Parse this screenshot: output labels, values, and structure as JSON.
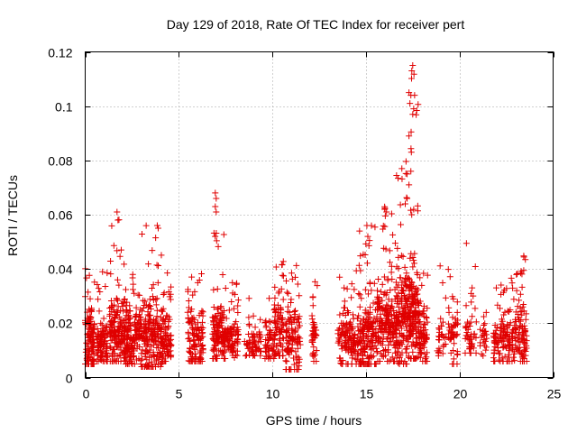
{
  "chart_data": {
    "type": "scatter",
    "title": "Day 129 of 2018, Rate Of TEC Index for receiver pert",
    "xlabel": "GPS time / hours",
    "ylabel": "ROTI / TECUs",
    "xlim": [
      0,
      25
    ],
    "ylim": [
      0,
      0.12
    ],
    "xticks": [
      0,
      5,
      10,
      15,
      20,
      25
    ],
    "xtick_labels": [
      "0",
      "5",
      "10",
      "15",
      "20",
      "25"
    ],
    "yticks": [
      0,
      0.02,
      0.04,
      0.06,
      0.08,
      0.1,
      0.12
    ],
    "ytick_labels": [
      "0",
      "0.02",
      "0.04",
      "0.06",
      "0.08",
      "0.1",
      "0.12"
    ],
    "grid": true,
    "marker": "plus",
    "color": "#e00000",
    "clusters": [
      {
        "x_start": 0.0,
        "x_end": 0.5,
        "y_low": 0.005,
        "y_high": 0.041,
        "median": 0.014,
        "count": 110
      },
      {
        "x_start": 0.6,
        "x_end": 1.2,
        "y_low": 0.006,
        "y_high": 0.039,
        "median": 0.012,
        "count": 100
      },
      {
        "x_start": 1.3,
        "x_end": 2.0,
        "y_low": 0.006,
        "y_high": 0.062,
        "median": 0.015,
        "count": 140
      },
      {
        "x_start": 2.0,
        "x_end": 3.0,
        "y_low": 0.005,
        "y_high": 0.042,
        "median": 0.014,
        "count": 180
      },
      {
        "x_start": 3.0,
        "x_end": 4.1,
        "y_low": 0.004,
        "y_high": 0.056,
        "median": 0.014,
        "count": 200
      },
      {
        "x_start": 4.1,
        "x_end": 4.6,
        "y_low": 0.006,
        "y_high": 0.039,
        "median": 0.014,
        "count": 80
      },
      {
        "x_start": 5.4,
        "x_end": 6.3,
        "y_low": 0.006,
        "y_high": 0.039,
        "median": 0.014,
        "count": 120
      },
      {
        "x_start": 6.8,
        "x_end": 7.5,
        "y_low": 0.007,
        "y_high": 0.069,
        "median": 0.015,
        "count": 130
      },
      {
        "x_start": 7.5,
        "x_end": 8.2,
        "y_low": 0.007,
        "y_high": 0.035,
        "median": 0.014,
        "count": 90
      },
      {
        "x_start": 8.5,
        "x_end": 9.4,
        "y_low": 0.008,
        "y_high": 0.032,
        "median": 0.013,
        "count": 60
      },
      {
        "x_start": 9.6,
        "x_end": 10.1,
        "y_low": 0.007,
        "y_high": 0.03,
        "median": 0.012,
        "count": 50
      },
      {
        "x_start": 10.1,
        "x_end": 10.6,
        "y_low": 0.008,
        "y_high": 0.045,
        "median": 0.016,
        "count": 80
      },
      {
        "x_start": 10.7,
        "x_end": 11.5,
        "y_low": 0.003,
        "y_high": 0.042,
        "median": 0.013,
        "count": 110
      },
      {
        "x_start": 12.1,
        "x_end": 12.4,
        "y_low": 0.006,
        "y_high": 0.044,
        "median": 0.013,
        "count": 40
      },
      {
        "x_start": 13.5,
        "x_end": 14.6,
        "y_low": 0.005,
        "y_high": 0.04,
        "median": 0.013,
        "count": 140
      },
      {
        "x_start": 14.6,
        "x_end": 15.6,
        "y_low": 0.005,
        "y_high": 0.056,
        "median": 0.015,
        "count": 180
      },
      {
        "x_start": 15.6,
        "x_end": 16.6,
        "y_low": 0.006,
        "y_high": 0.063,
        "median": 0.018,
        "count": 190
      },
      {
        "x_start": 16.6,
        "x_end": 17.3,
        "y_low": 0.005,
        "y_high": 0.08,
        "median": 0.02,
        "count": 170
      },
      {
        "x_start": 17.3,
        "x_end": 17.8,
        "y_low": 0.007,
        "y_high": 0.116,
        "median": 0.022,
        "count": 150
      },
      {
        "x_start": 17.8,
        "x_end": 18.3,
        "y_low": 0.006,
        "y_high": 0.04,
        "median": 0.014,
        "count": 80
      },
      {
        "x_start": 18.8,
        "x_end": 19.3,
        "y_low": 0.008,
        "y_high": 0.05,
        "median": 0.014,
        "count": 30
      },
      {
        "x_start": 19.4,
        "x_end": 19.9,
        "y_low": 0.005,
        "y_high": 0.047,
        "median": 0.014,
        "count": 50
      },
      {
        "x_start": 20.3,
        "x_end": 20.9,
        "y_low": 0.009,
        "y_high": 0.05,
        "median": 0.014,
        "count": 50
      },
      {
        "x_start": 21.1,
        "x_end": 21.5,
        "y_low": 0.008,
        "y_high": 0.032,
        "median": 0.014,
        "count": 25
      },
      {
        "x_start": 21.8,
        "x_end": 22.7,
        "y_low": 0.006,
        "y_high": 0.035,
        "median": 0.013,
        "count": 100
      },
      {
        "x_start": 22.7,
        "x_end": 23.6,
        "y_low": 0.006,
        "y_high": 0.045,
        "median": 0.014,
        "count": 120
      }
    ],
    "highlights": [
      {
        "x": 17.5,
        "y": 0.115
      },
      {
        "x": 17.45,
        "y": 0.113
      },
      {
        "x": 17.3,
        "y": 0.105
      },
      {
        "x": 17.4,
        "y": 0.104
      },
      {
        "x": 17.6,
        "y": 0.104
      },
      {
        "x": 17.35,
        "y": 0.101
      },
      {
        "x": 17.55,
        "y": 0.099
      },
      {
        "x": 17.5,
        "y": 0.097
      },
      {
        "x": 17.3,
        "y": 0.089
      },
      {
        "x": 17.4,
        "y": 0.076
      },
      {
        "x": 17.2,
        "y": 0.075
      },
      {
        "x": 17.3,
        "y": 0.071
      },
      {
        "x": 17.2,
        "y": 0.066
      },
      {
        "x": 17.1,
        "y": 0.064
      },
      {
        "x": 6.95,
        "y": 0.068
      },
      {
        "x": 7.0,
        "y": 0.066
      },
      {
        "x": 6.95,
        "y": 0.063
      },
      {
        "x": 7.0,
        "y": 0.061
      },
      {
        "x": 1.7,
        "y": 0.061
      },
      {
        "x": 1.75,
        "y": 0.058
      },
      {
        "x": 3.85,
        "y": 0.056
      },
      {
        "x": 3.9,
        "y": 0.055
      },
      {
        "x": 16.0,
        "y": 0.062
      },
      {
        "x": 16.1,
        "y": 0.061
      },
      {
        "x": 15.05,
        "y": 0.056
      },
      {
        "x": 15.1,
        "y": 0.052
      }
    ]
  }
}
